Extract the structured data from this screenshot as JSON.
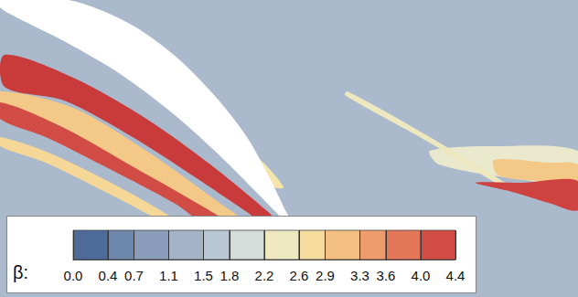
{
  "chart_data": {
    "type": "contour",
    "xlim": [
      0,
      632
    ],
    "ylim": [
      0,
      325
    ],
    "tick_labels": false,
    "background_value": 1.4,
    "body": [
      [
        75,
        0
      ],
      [
        140,
        25
      ],
      [
        190,
        60
      ],
      [
        235,
        105
      ],
      [
        270,
        150
      ],
      [
        295,
        195
      ],
      [
        312,
        230
      ],
      [
        320,
        245
      ],
      [
        310,
        240
      ],
      [
        280,
        210
      ],
      [
        240,
        170
      ],
      [
        190,
        125
      ],
      [
        130,
        80
      ],
      [
        70,
        45
      ],
      [
        20,
        20
      ],
      [
        0,
        8
      ],
      [
        0,
        0
      ]
    ],
    "regions": [
      {
        "value": 3.0,
        "points": [
          [
            0,
            100
          ],
          [
            80,
            118
          ],
          [
            160,
            165
          ],
          [
            240,
            222
          ],
          [
            270,
            245
          ],
          [
            250,
            245
          ],
          [
            200,
            215
          ],
          [
            130,
            175
          ],
          [
            60,
            135
          ],
          [
            0,
            118
          ]
        ]
      },
      {
        "value": 4.4,
        "points": [
          [
            5,
            60
          ],
          [
            80,
            85
          ],
          [
            160,
            130
          ],
          [
            230,
            180
          ],
          [
            285,
            225
          ],
          [
            300,
            240
          ],
          [
            290,
            245
          ],
          [
            270,
            232
          ],
          [
            215,
            195
          ],
          [
            145,
            150
          ],
          [
            70,
            110
          ],
          [
            5,
            95
          ]
        ]
      },
      {
        "value": 4.2,
        "points": [
          [
            0,
            112
          ],
          [
            70,
            140
          ],
          [
            150,
            185
          ],
          [
            220,
            225
          ],
          [
            250,
            245
          ],
          [
            225,
            245
          ],
          [
            190,
            222
          ],
          [
            120,
            185
          ],
          [
            50,
            150
          ],
          [
            0,
            130
          ]
        ]
      },
      {
        "value": 2.8,
        "points": [
          [
            0,
            150
          ],
          [
            60,
            170
          ],
          [
            140,
            210
          ],
          [
            190,
            240
          ],
          [
            175,
            240
          ],
          [
            125,
            215
          ],
          [
            50,
            178
          ],
          [
            0,
            160
          ]
        ]
      },
      {
        "value": 2.6,
        "points": [
          [
            200,
            110
          ],
          [
            240,
            135
          ],
          [
            290,
            180
          ],
          [
            310,
            205
          ],
          [
            300,
            205
          ],
          [
            270,
            180
          ],
          [
            230,
            150
          ],
          [
            195,
            118
          ]
        ]
      },
      {
        "value": 4.2,
        "points": [
          [
            215,
            118
          ],
          [
            240,
            135
          ],
          [
            262,
            158
          ],
          [
            265,
            168
          ],
          [
            248,
            158
          ],
          [
            225,
            140
          ],
          [
            212,
            125
          ]
        ]
      },
      {
        "value": 2.3,
        "points": [
          [
            470,
            165
          ],
          [
            540,
            160
          ],
          [
            632,
            165
          ],
          [
            632,
            200
          ],
          [
            560,
            195
          ],
          [
            480,
            180
          ]
        ]
      },
      {
        "value": 2.4,
        "points": [
          [
            380,
            100
          ],
          [
            470,
            150
          ],
          [
            560,
            205
          ],
          [
            556,
            208
          ],
          [
            466,
            154
          ],
          [
            377,
            104
          ]
        ]
      },
      {
        "value": 3.0,
        "points": [
          [
            540,
            175
          ],
          [
            600,
            178
          ],
          [
            632,
            180
          ],
          [
            632,
            200
          ],
          [
            590,
            198
          ],
          [
            545,
            192
          ]
        ]
      },
      {
        "value": 4.3,
        "points": [
          [
            520,
            200
          ],
          [
            570,
            200
          ],
          [
            632,
            198
          ],
          [
            632,
            230
          ],
          [
            600,
            222
          ],
          [
            560,
            210
          ]
        ]
      }
    ],
    "colorbar": {
      "label": "β:",
      "range": [
        0,
        4.4
      ],
      "ticks": [
        {
          "value": 0,
          "label": "0.0"
        },
        0.4,
        0.7,
        1.1,
        1.5,
        1.8,
        2.2,
        2.6,
        2.9,
        3.3,
        3.6,
        {
          "value": 4,
          "label": "4.0"
        },
        4.4
      ]
    }
  }
}
